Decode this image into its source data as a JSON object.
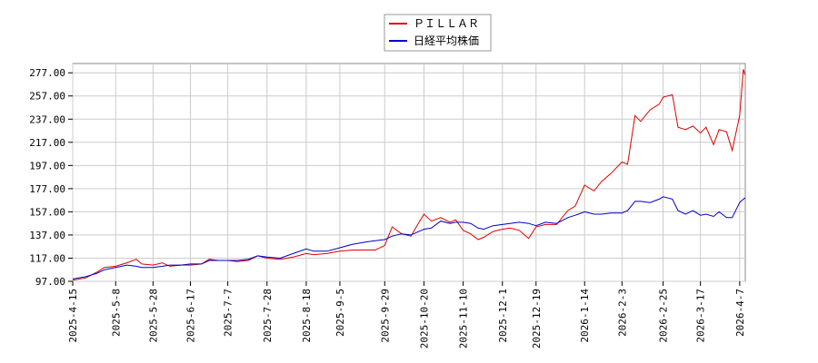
{
  "chart_data": {
    "type": "line",
    "title": "",
    "xlabel": "",
    "ylabel": "",
    "ylim": [
      97.0,
      285.0
    ],
    "y_ticks": [
      "97.00",
      "117.00",
      "137.00",
      "157.00",
      "177.00",
      "197.00",
      "217.00",
      "237.00",
      "257.00",
      "277.00"
    ],
    "x_ticks": [
      "2025-4-15",
      "2025-5-8",
      "2025-5-28",
      "2025-6-17",
      "2025-7-7",
      "2025-7-28",
      "2025-8-18",
      "2025-9-5",
      "2025-9-29",
      "2025-10-20",
      "2025-11-10",
      "2025-12-1",
      "2025-12-19",
      "2026-1-14",
      "2026-2-3",
      "2026-2-25",
      "2026-3-17",
      "2026-4-7"
    ],
    "x_range": [
      "2025-4-15",
      "2026-4-10"
    ],
    "grid": true,
    "legend_position": "top-center",
    "series": [
      {
        "name": "ＰＩＬＬＡＲ",
        "color": "#dd0000",
        "points": [
          [
            "2025-4-15",
            98
          ],
          [
            "2025-4-22",
            100
          ],
          [
            "2025-4-28",
            105
          ],
          [
            "2025-5-2",
            109
          ],
          [
            "2025-5-8",
            110
          ],
          [
            "2025-5-14",
            113
          ],
          [
            "2025-5-19",
            116
          ],
          [
            "2025-5-22",
            112
          ],
          [
            "2025-5-28",
            111
          ],
          [
            "2025-6-2",
            113
          ],
          [
            "2025-6-6",
            110
          ],
          [
            "2025-6-12",
            111
          ],
          [
            "2025-6-17",
            111
          ],
          [
            "2025-6-23",
            112
          ],
          [
            "2025-6-27",
            116
          ],
          [
            "2025-7-2",
            115
          ],
          [
            "2025-7-7",
            115
          ],
          [
            "2025-7-12",
            114
          ],
          [
            "2025-7-18",
            115
          ],
          [
            "2025-7-23",
            119
          ],
          [
            "2025-7-28",
            117
          ],
          [
            "2025-8-4",
            116
          ],
          [
            "2025-8-11",
            118
          ],
          [
            "2025-8-18",
            121
          ],
          [
            "2025-8-22",
            120
          ],
          [
            "2025-8-29",
            121
          ],
          [
            "2025-9-5",
            123
          ],
          [
            "2025-9-12",
            124
          ],
          [
            "2025-9-19",
            124
          ],
          [
            "2025-9-24",
            124
          ],
          [
            "2025-9-29",
            128
          ],
          [
            "2025-10-3",
            144
          ],
          [
            "2025-10-8",
            138
          ],
          [
            "2025-10-13",
            136
          ],
          [
            "2025-10-20",
            155
          ],
          [
            "2025-10-24",
            149
          ],
          [
            "2025-10-29",
            152
          ],
          [
            "2025-11-3",
            148
          ],
          [
            "2025-11-6",
            150
          ],
          [
            "2025-11-10",
            141
          ],
          [
            "2025-11-14",
            138
          ],
          [
            "2025-11-18",
            133
          ],
          [
            "2025-11-21",
            135
          ],
          [
            "2025-11-26",
            140
          ],
          [
            "2025-12-1",
            142
          ],
          [
            "2025-12-5",
            143
          ],
          [
            "2025-12-10",
            141
          ],
          [
            "2025-12-15",
            134
          ],
          [
            "2025-12-19",
            144
          ],
          [
            "2025-12-24",
            146
          ],
          [
            "2025-12-30",
            146
          ],
          [
            "2026-1-5",
            158
          ],
          [
            "2026-1-9",
            162
          ],
          [
            "2026-1-14",
            180
          ],
          [
            "2026-1-19",
            175
          ],
          [
            "2026-1-23",
            183
          ],
          [
            "2026-1-28",
            190
          ],
          [
            "2026-2-3",
            200
          ],
          [
            "2026-2-6",
            198
          ],
          [
            "2026-2-10",
            240
          ],
          [
            "2026-2-13",
            235
          ],
          [
            "2026-2-18",
            245
          ],
          [
            "2026-2-23",
            250
          ],
          [
            "2026-2-25",
            256
          ],
          [
            "2026-3-2",
            258
          ],
          [
            "2026-3-5",
            230
          ],
          [
            "2026-3-9",
            228
          ],
          [
            "2026-3-13",
            231
          ],
          [
            "2026-3-17",
            225
          ],
          [
            "2026-3-20",
            230
          ],
          [
            "2026-3-24",
            215
          ],
          [
            "2026-3-27",
            228
          ],
          [
            "2026-3-31",
            226
          ],
          [
            "2026-4-3",
            210
          ],
          [
            "2026-4-7",
            240
          ],
          [
            "2026-4-9",
            280
          ],
          [
            "2026-4-10",
            275
          ]
        ]
      },
      {
        "name": "日経平均株価",
        "color": "#0000cc",
        "points": [
          [
            "2025-4-15",
            99
          ],
          [
            "2025-4-22",
            101
          ],
          [
            "2025-4-28",
            104
          ],
          [
            "2025-5-2",
            107
          ],
          [
            "2025-5-8",
            109
          ],
          [
            "2025-5-14",
            111
          ],
          [
            "2025-5-19",
            110
          ],
          [
            "2025-5-22",
            109
          ],
          [
            "2025-5-28",
            109
          ],
          [
            "2025-6-2",
            110
          ],
          [
            "2025-6-6",
            111
          ],
          [
            "2025-6-12",
            111
          ],
          [
            "2025-6-17",
            112
          ],
          [
            "2025-6-23",
            112
          ],
          [
            "2025-6-27",
            115
          ],
          [
            "2025-7-2",
            115
          ],
          [
            "2025-7-7",
            115
          ],
          [
            "2025-7-12",
            115
          ],
          [
            "2025-7-18",
            116
          ],
          [
            "2025-7-23",
            119
          ],
          [
            "2025-7-28",
            118
          ],
          [
            "2025-8-4",
            117
          ],
          [
            "2025-8-11",
            121
          ],
          [
            "2025-8-18",
            125
          ],
          [
            "2025-8-22",
            123
          ],
          [
            "2025-8-29",
            123
          ],
          [
            "2025-9-5",
            126
          ],
          [
            "2025-9-12",
            129
          ],
          [
            "2025-9-19",
            131
          ],
          [
            "2025-9-24",
            132
          ],
          [
            "2025-9-29",
            133
          ],
          [
            "2025-10-3",
            136
          ],
          [
            "2025-10-8",
            138
          ],
          [
            "2025-10-13",
            137
          ],
          [
            "2025-10-20",
            142
          ],
          [
            "2025-10-24",
            143
          ],
          [
            "2025-10-29",
            149
          ],
          [
            "2025-11-3",
            147
          ],
          [
            "2025-11-6",
            148
          ],
          [
            "2025-11-10",
            148
          ],
          [
            "2025-11-14",
            147
          ],
          [
            "2025-11-18",
            143
          ],
          [
            "2025-11-21",
            142
          ],
          [
            "2025-11-26",
            145
          ],
          [
            "2025-12-1",
            146
          ],
          [
            "2025-12-5",
            147
          ],
          [
            "2025-12-10",
            148
          ],
          [
            "2025-12-15",
            147
          ],
          [
            "2025-12-19",
            145
          ],
          [
            "2025-12-24",
            148
          ],
          [
            "2025-12-30",
            147
          ],
          [
            "2026-1-5",
            152
          ],
          [
            "2026-1-9",
            154
          ],
          [
            "2026-1-14",
            157
          ],
          [
            "2026-1-19",
            155
          ],
          [
            "2026-1-23",
            155
          ],
          [
            "2026-1-28",
            156
          ],
          [
            "2026-2-3",
            156
          ],
          [
            "2026-2-6",
            158
          ],
          [
            "2026-2-10",
            166
          ],
          [
            "2026-2-13",
            166
          ],
          [
            "2026-2-18",
            165
          ],
          [
            "2026-2-23",
            168
          ],
          [
            "2026-2-25",
            170
          ],
          [
            "2026-3-2",
            168
          ],
          [
            "2026-3-5",
            158
          ],
          [
            "2026-3-9",
            155
          ],
          [
            "2026-3-13",
            158
          ],
          [
            "2026-3-17",
            154
          ],
          [
            "2026-3-20",
            155
          ],
          [
            "2026-3-24",
            153
          ],
          [
            "2026-3-27",
            157
          ],
          [
            "2026-3-31",
            152
          ],
          [
            "2026-4-3",
            152
          ],
          [
            "2026-4-7",
            165
          ],
          [
            "2026-4-9",
            168
          ],
          [
            "2026-4-10",
            169
          ]
        ]
      }
    ]
  }
}
